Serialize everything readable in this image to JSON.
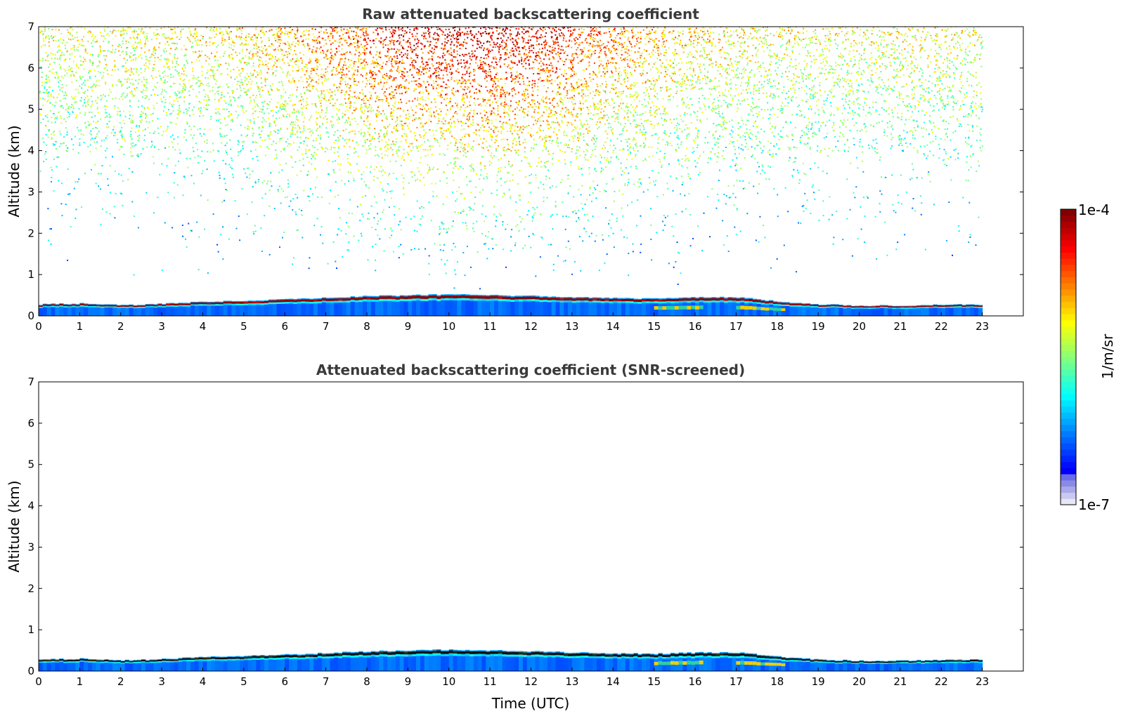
{
  "chart_data": [
    {
      "type": "heatmap",
      "title": "Raw attenuated backscattering coefficient",
      "xlabel": "",
      "ylabel": "Altitude (km)",
      "xlim": [
        0,
        24
      ],
      "ylim": [
        0,
        7
      ],
      "xticks": [
        "0",
        "1",
        "2",
        "3",
        "4",
        "5",
        "6",
        "7",
        "8",
        "9",
        "10",
        "11",
        "12",
        "13",
        "14",
        "15",
        "16",
        "17",
        "18",
        "19",
        "20",
        "21",
        "22",
        "23"
      ],
      "yticks": [
        "0",
        "1",
        "2",
        "3",
        "4",
        "5",
        "6",
        "7"
      ],
      "data_time_range": [
        0,
        23
      ],
      "layer_top_km": [
        [
          0,
          0.28
        ],
        [
          1,
          0.3
        ],
        [
          2,
          0.26
        ],
        [
          3,
          0.29
        ],
        [
          4,
          0.35
        ],
        [
          5,
          0.37
        ],
        [
          6,
          0.4
        ],
        [
          7,
          0.44
        ],
        [
          8,
          0.48
        ],
        [
          9,
          0.5
        ],
        [
          10,
          0.52
        ],
        [
          11,
          0.5
        ],
        [
          12,
          0.48
        ],
        [
          13,
          0.45
        ],
        [
          14,
          0.43
        ],
        [
          15,
          0.42
        ],
        [
          16,
          0.45
        ],
        [
          17,
          0.45
        ],
        [
          18,
          0.35
        ],
        [
          19,
          0.28
        ],
        [
          20,
          0.25
        ],
        [
          21,
          0.25
        ],
        [
          22,
          0.27
        ],
        [
          23,
          0.28
        ]
      ],
      "noise_field": "dense high-altitude noise; yellow-orange near top center (8-12 UTC), green-cyan elsewhere; blue speckle down to ~1 km midday"
    },
    {
      "type": "heatmap",
      "title": "Attenuated backscattering coefficient (SNR-screened)",
      "xlabel": "Time (UTC)",
      "ylabel": "Altitude (km)",
      "xlim": [
        0,
        24
      ],
      "ylim": [
        0,
        7
      ],
      "xticks": [
        "0",
        "1",
        "2",
        "3",
        "4",
        "5",
        "6",
        "7",
        "8",
        "9",
        "10",
        "11",
        "12",
        "13",
        "14",
        "15",
        "16",
        "17",
        "18",
        "19",
        "20",
        "21",
        "22",
        "23"
      ],
      "yticks": [
        "0",
        "1",
        "2",
        "3",
        "4",
        "5",
        "6",
        "7"
      ],
      "data_time_range": [
        0,
        23
      ],
      "layer_top_km": [
        [
          0,
          0.28
        ],
        [
          1,
          0.3
        ],
        [
          2,
          0.26
        ],
        [
          3,
          0.29
        ],
        [
          4,
          0.35
        ],
        [
          5,
          0.37
        ],
        [
          6,
          0.4
        ],
        [
          7,
          0.44
        ],
        [
          8,
          0.48
        ],
        [
          9,
          0.5
        ],
        [
          10,
          0.52
        ],
        [
          11,
          0.5
        ],
        [
          12,
          0.48
        ],
        [
          13,
          0.45
        ],
        [
          14,
          0.43
        ],
        [
          15,
          0.42
        ],
        [
          16,
          0.45
        ],
        [
          17,
          0.45
        ],
        [
          18,
          0.35
        ],
        [
          19,
          0.28
        ],
        [
          20,
          0.25
        ],
        [
          21,
          0.25
        ],
        [
          22,
          0.27
        ],
        [
          23,
          0.28
        ]
      ]
    }
  ],
  "colorbar": {
    "max_label": "1e-4",
    "min_label": "1e-7",
    "unit_label": "1/m/sr",
    "colormap": "jet",
    "low_colors": [
      "#e6e6f5",
      "#c8c8f0",
      "#a8a8ea",
      "#8a8ae6",
      "#6b6bea"
    ]
  }
}
